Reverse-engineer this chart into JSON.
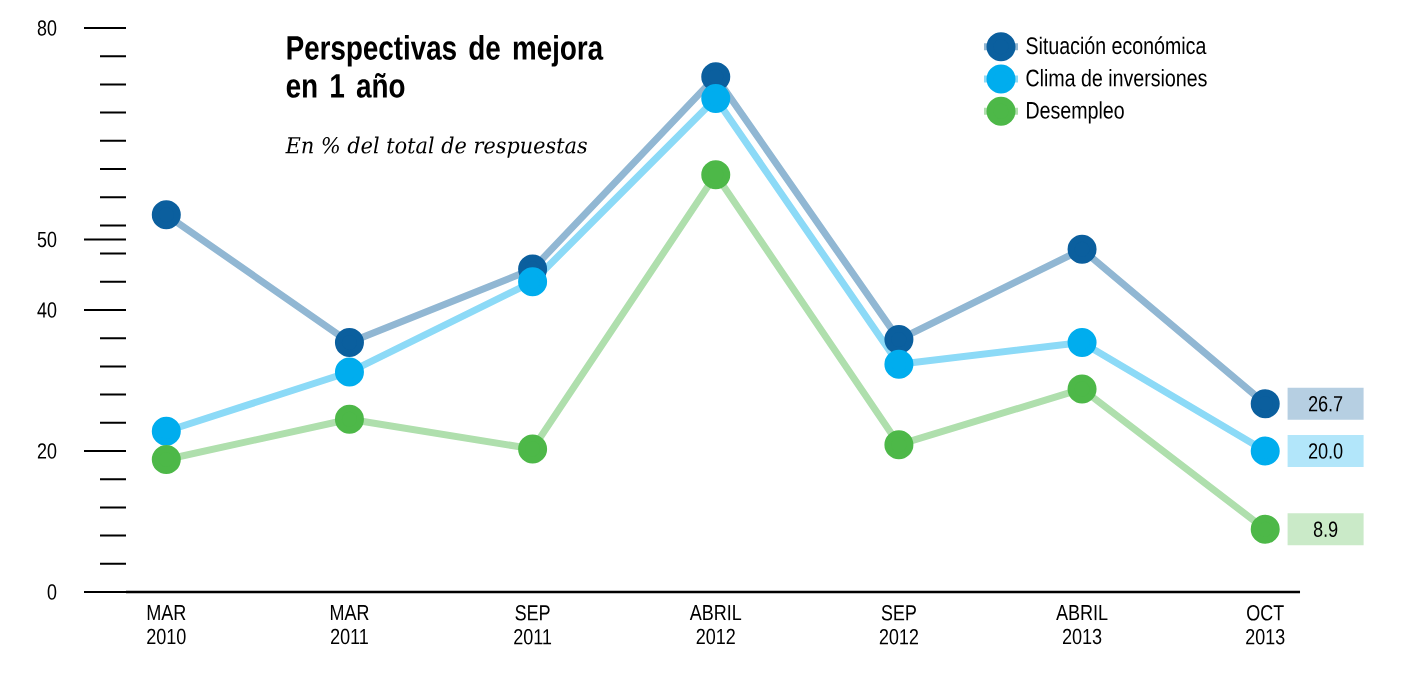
{
  "chart_data": {
    "type": "line",
    "title": "Perspectivas de mejora en 1 año",
    "subtitle": "En % del total de respuestas",
    "categories": [
      "MAR 2010",
      "MAR 2011",
      "SEP 2011",
      "ABRIL 2012",
      "SEP 2012",
      "ABRIL 2013",
      "OCT 2013"
    ],
    "ylim": [
      0,
      80
    ],
    "yticks": [
      0,
      20,
      40,
      50,
      80
    ],
    "marker": "circle",
    "line_style": "solid",
    "legend": "top right",
    "grid": false,
    "series": [
      {
        "name": "Situación económica",
        "color": "#0b5f9e",
        "values": [
          53.5,
          35.4,
          45.8,
          73.1,
          35.8,
          48.6,
          26.7
        ],
        "value_labels": [
          null,
          null,
          null,
          null,
          null,
          null,
          "26.7"
        ]
      },
      {
        "name": "Clima de inversiones",
        "color": "#00adee",
        "values": [
          22.8,
          31.2,
          44.0,
          70.0,
          32.3,
          35.4,
          20.0
        ],
        "value_labels": [
          null,
          null,
          null,
          null,
          null,
          null,
          "20.0"
        ]
      },
      {
        "name": "Desempleo",
        "color": "#4db848",
        "values": [
          18.8,
          24.5,
          20.3,
          59.2,
          20.9,
          28.8,
          8.9
        ],
        "value_labels": [
          null,
          null,
          null,
          null,
          null,
          null,
          "8.9"
        ]
      }
    ]
  }
}
